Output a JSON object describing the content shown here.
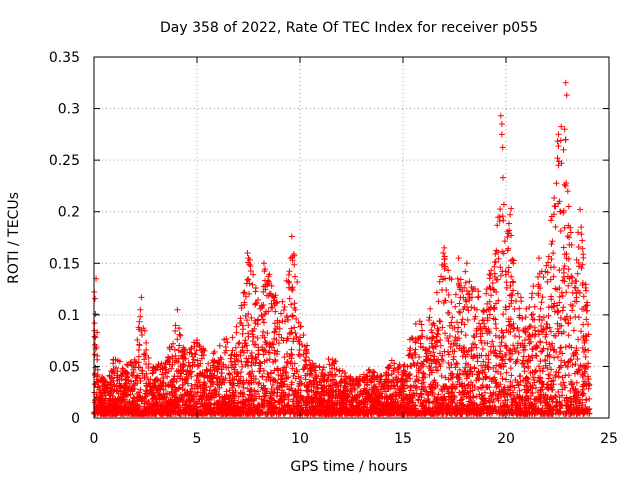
{
  "chart_data": {
    "type": "scatter",
    "title": "Day 358 of 2022, Rate Of TEC Index for receiver p055",
    "xlabel": "GPS time / hours",
    "ylabel": "ROTI / TECUs",
    "xlim": [
      0,
      25
    ],
    "ylim": [
      0,
      0.35
    ],
    "xticks": [
      "0",
      "5",
      "10",
      "15",
      "20",
      "25"
    ],
    "yticks": [
      "0",
      "0.05",
      "0.1",
      "0.15",
      "0.2",
      "0.25",
      "0.3",
      "0.35"
    ],
    "grid": true,
    "marker": "+",
    "color": "#ff0000",
    "series": [
      {
        "name": "ROTI",
        "envelope": [
          [
            0.0,
            0.14
          ],
          [
            0.2,
            0.05
          ],
          [
            0.5,
            0.04
          ],
          [
            1.0,
            0.06
          ],
          [
            1.5,
            0.05
          ],
          [
            2.0,
            0.06
          ],
          [
            2.3,
            0.12
          ],
          [
            2.6,
            0.06
          ],
          [
            3.0,
            0.05
          ],
          [
            3.5,
            0.06
          ],
          [
            4.0,
            0.1
          ],
          [
            4.5,
            0.06
          ],
          [
            5.0,
            0.08
          ],
          [
            5.5,
            0.06
          ],
          [
            6.0,
            0.07
          ],
          [
            6.5,
            0.08
          ],
          [
            7.0,
            0.09
          ],
          [
            7.5,
            0.16
          ],
          [
            8.0,
            0.12
          ],
          [
            8.3,
            0.15
          ],
          [
            8.7,
            0.13
          ],
          [
            9.0,
            0.11
          ],
          [
            9.5,
            0.15
          ],
          [
            9.7,
            0.18
          ],
          [
            10.0,
            0.1
          ],
          [
            10.5,
            0.06
          ],
          [
            11.0,
            0.05
          ],
          [
            11.5,
            0.06
          ],
          [
            12.0,
            0.05
          ],
          [
            12.5,
            0.04
          ],
          [
            13.0,
            0.04
          ],
          [
            13.5,
            0.05
          ],
          [
            14.0,
            0.04
          ],
          [
            14.5,
            0.06
          ],
          [
            15.0,
            0.05
          ],
          [
            15.5,
            0.09
          ],
          [
            16.0,
            0.1
          ],
          [
            16.5,
            0.11
          ],
          [
            17.0,
            0.16
          ],
          [
            17.5,
            0.13
          ],
          [
            18.0,
            0.15
          ],
          [
            18.5,
            0.13
          ],
          [
            19.0,
            0.12
          ],
          [
            19.5,
            0.18
          ],
          [
            19.8,
            0.29
          ],
          [
            20.0,
            0.23
          ],
          [
            20.2,
            0.2
          ],
          [
            20.5,
            0.13
          ],
          [
            21.0,
            0.11
          ],
          [
            21.5,
            0.14
          ],
          [
            22.0,
            0.15
          ],
          [
            22.5,
            0.27
          ],
          [
            22.8,
            0.32
          ],
          [
            23.0,
            0.22
          ],
          [
            23.3,
            0.15
          ],
          [
            23.6,
            0.2
          ],
          [
            24.0,
            0.1
          ]
        ],
        "outliers": [
          [
            0.1,
            0.135
          ],
          [
            0.15,
            0.083
          ],
          [
            2.3,
            0.117
          ],
          [
            2.25,
            0.105
          ],
          [
            4.05,
            0.105
          ],
          [
            7.45,
            0.16
          ],
          [
            7.5,
            0.155
          ],
          [
            8.25,
            0.15
          ],
          [
            9.6,
            0.176
          ],
          [
            9.55,
            0.155
          ],
          [
            16.95,
            0.16
          ],
          [
            17.0,
            0.165
          ],
          [
            17.7,
            0.155
          ],
          [
            18.5,
            0.125
          ],
          [
            19.75,
            0.293
          ],
          [
            19.8,
            0.285
          ],
          [
            19.8,
            0.275
          ],
          [
            19.85,
            0.233
          ],
          [
            19.9,
            0.207
          ],
          [
            20.25,
            0.203
          ],
          [
            20.2,
            0.197
          ],
          [
            20.25,
            0.177
          ],
          [
            19.7,
            0.195
          ],
          [
            22.55,
            0.275
          ],
          [
            22.5,
            0.252
          ],
          [
            22.55,
            0.245
          ],
          [
            22.9,
            0.325
          ],
          [
            22.95,
            0.313
          ],
          [
            22.85,
            0.28
          ],
          [
            22.9,
            0.27
          ],
          [
            22.9,
            0.225
          ],
          [
            23.0,
            0.22
          ],
          [
            23.05,
            0.205
          ],
          [
            23.6,
            0.202
          ],
          [
            23.65,
            0.185
          ],
          [
            23.7,
            0.172
          ],
          [
            23.5,
            0.18
          ],
          [
            22.6,
            0.21
          ],
          [
            22.65,
            0.2
          ],
          [
            21.6,
            0.155
          ],
          [
            20.35,
            0.15
          ],
          [
            18.1,
            0.15
          ],
          [
            8.45,
            0.13
          ],
          [
            8.5,
            0.132
          ]
        ]
      }
    ]
  }
}
